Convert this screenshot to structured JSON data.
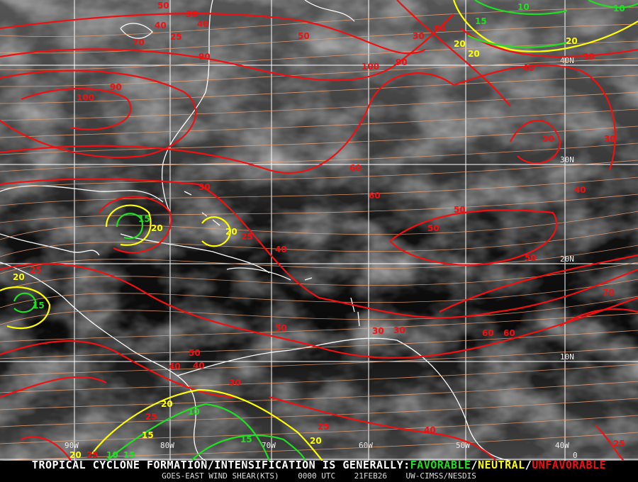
{
  "map": {
    "product": "GOES-EAST WIND SHEAR(KTS)",
    "time": "0000 UTC",
    "date": "21FEB26",
    "source": "UW-CIMSS/NESDIS",
    "headline": "TROPICAL CYCLONE FORMATION/INTENSIFICATION IS GENERALLY:",
    "legend": [
      {
        "label": "FAVORABLE",
        "color": "#22dd22"
      },
      {
        "label": "NEUTRAL",
        "color": "#ffff00"
      },
      {
        "label": "UNFAVORABLE",
        "color": "#ee1111"
      }
    ],
    "longitude_labels": [
      "90W",
      "80W",
      "70W",
      "60W",
      "50W",
      "40W"
    ],
    "latitude_labels": [
      "40N",
      "30N",
      "20N",
      "10N",
      "0"
    ],
    "contour_labels": [
      "50",
      "30",
      "40",
      "25",
      "40",
      "70",
      "90",
      "20",
      "30",
      "20",
      "10",
      "10",
      "15",
      "20",
      "30",
      "100",
      "60",
      "50",
      "90",
      "100",
      "90",
      "60",
      "40",
      "30",
      "30",
      "60",
      "30",
      "15",
      "20",
      "20",
      "25",
      "40",
      "25",
      "20",
      "15",
      "50",
      "50",
      "40",
      "60",
      "50",
      "50",
      "30",
      "40",
      "30",
      "20",
      "15",
      "40",
      "25",
      "25",
      "20",
      "10",
      "15",
      "10",
      "15",
      "20",
      "25",
      "40",
      "25",
      "70",
      "50",
      "60",
      "30"
    ],
    "colors": {
      "unfavorable": "#ee1111",
      "neutral": "#ffff00",
      "favorable": "#22dd22",
      "streamline": "#f0a070",
      "coastline": "#ffffff",
      "grid": "#ffffff"
    }
  }
}
